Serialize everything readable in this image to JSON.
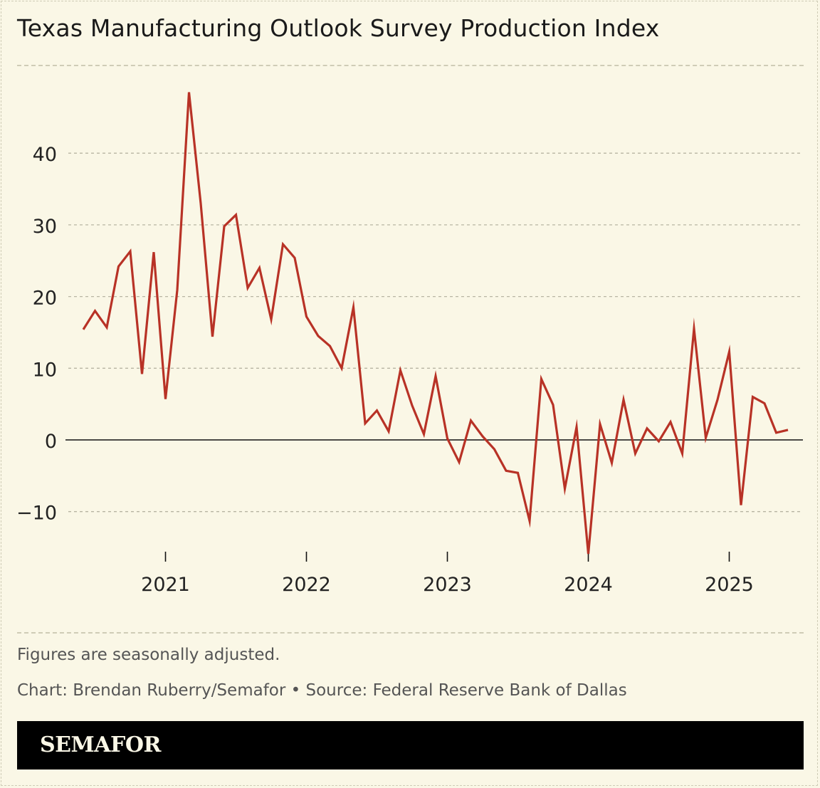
{
  "title": "Texas Manufacturing Outlook Survey Production Index",
  "note": "Figures are seasonally adjusted.",
  "credit": "Chart: Brendan Ruberry/Semafor • Source: Federal Reserve Bank of Dallas",
  "brand": "SEMAFOR",
  "colors": {
    "background": "#faf7e6",
    "line": "#b83226",
    "zero": "#111111",
    "grid": "#b8b5a3"
  },
  "chart_data": {
    "type": "line",
    "title": "Texas Manufacturing Outlook Survey Production Index",
    "xlabel": "",
    "ylabel": "",
    "ylim": [
      -15.9,
      48.5
    ],
    "yticks": [
      40,
      30,
      20,
      10,
      0,
      -10
    ],
    "ytick_labels": [
      "40",
      "30",
      "20",
      "10",
      "0",
      "−10"
    ],
    "xtick_labels": [
      "2021",
      "2022",
      "2023",
      "2024",
      "2025"
    ],
    "grid": true,
    "x": [
      "2020-06",
      "2020-07",
      "2020-08",
      "2020-09",
      "2020-10",
      "2020-11",
      "2020-12",
      "2021-01",
      "2021-02",
      "2021-03",
      "2021-04",
      "2021-05",
      "2021-06",
      "2021-07",
      "2021-08",
      "2021-09",
      "2021-10",
      "2021-11",
      "2021-12",
      "2022-01",
      "2022-02",
      "2022-03",
      "2022-04",
      "2022-05",
      "2022-06",
      "2022-07",
      "2022-08",
      "2022-09",
      "2022-10",
      "2022-11",
      "2022-12",
      "2023-01",
      "2023-02",
      "2023-03",
      "2023-04",
      "2023-05",
      "2023-06",
      "2023-07",
      "2023-08",
      "2023-09",
      "2023-10",
      "2023-11",
      "2023-12",
      "2024-01",
      "2024-02",
      "2024-03",
      "2024-04",
      "2024-05",
      "2024-06",
      "2024-07",
      "2024-08",
      "2024-09",
      "2024-10",
      "2024-11",
      "2024-12",
      "2025-01",
      "2025-02",
      "2025-03",
      "2025-04",
      "2025-05",
      "2025-06"
    ],
    "series": [
      {
        "name": "Production Index",
        "values": [
          15.4,
          18.0,
          15.7,
          24.2,
          26.3,
          9.2,
          26.2,
          5.7,
          20.9,
          48.5,
          33.0,
          14.4,
          29.8,
          31.4,
          21.2,
          24.0,
          16.8,
          27.3,
          25.4,
          17.2,
          14.5,
          13.1,
          10.0,
          18.5,
          2.3,
          4.1,
          1.2,
          9.7,
          4.8,
          0.8,
          8.9,
          0.2,
          -3.1,
          2.7,
          0.5,
          -1.3,
          -4.3,
          -4.6,
          -11.3,
          8.5,
          4.9,
          -6.8,
          1.8,
          -15.9,
          2.2,
          -3.2,
          5.6,
          -1.9,
          1.6,
          -0.2,
          2.5,
          -1.9,
          15.5,
          0.3,
          5.6,
          12.3,
          -9.1,
          6.0,
          5.1,
          1.0,
          1.4
        ]
      }
    ]
  }
}
